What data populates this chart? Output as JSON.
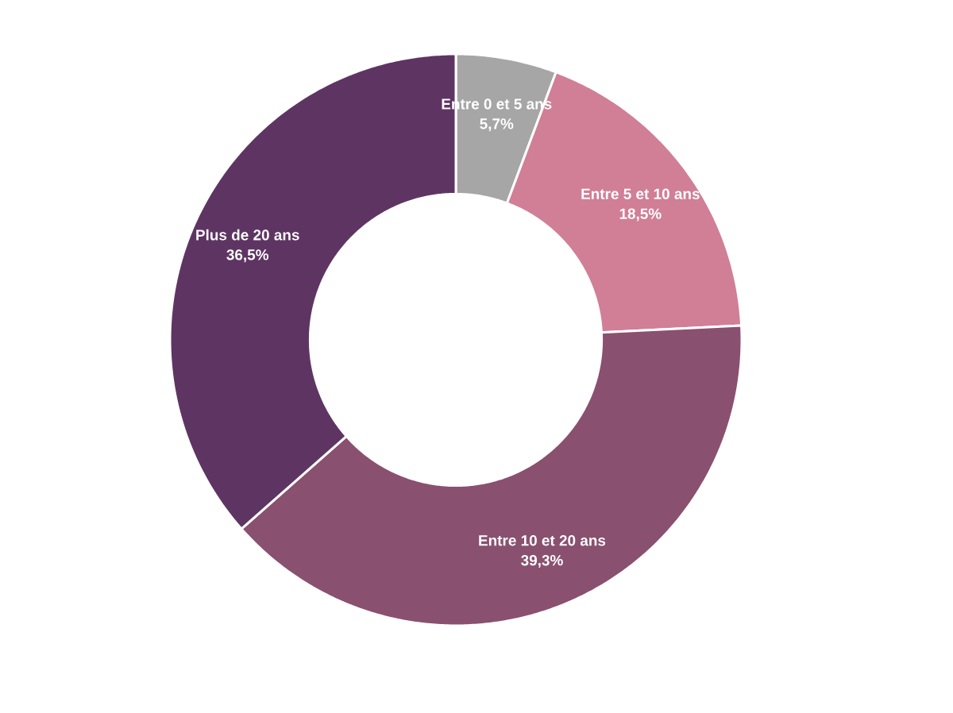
{
  "chart_data": {
    "type": "donut",
    "categories": [
      "Entre 0 et 5 ans",
      "Entre 5 et 10 ans",
      "Entre 10 et 20 ans",
      "Plus de 20 ans"
    ],
    "values": [
      5.7,
      18.5,
      39.3,
      36.5
    ],
    "colors": [
      "#a6a6a6",
      "#d07f96",
      "#8a5070",
      "#5e3562"
    ],
    "value_labels": [
      "5,7%",
      "18,5%",
      "39,3%",
      "36,5%"
    ]
  }
}
